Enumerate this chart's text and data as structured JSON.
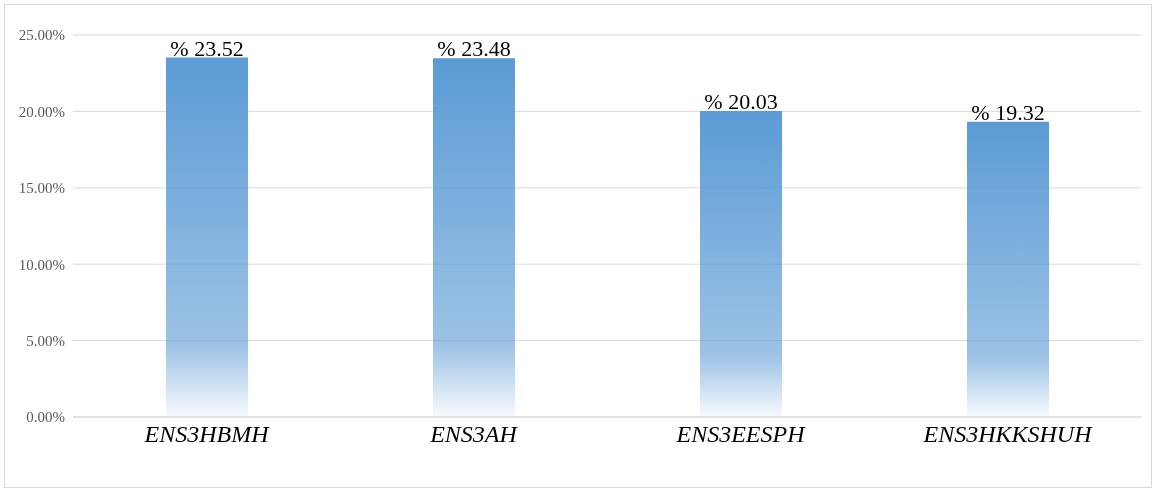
{
  "chart_data": {
    "type": "bar",
    "categories": [
      "ENS3HBMH",
      "ENS3AH",
      "ENS3EESPH",
      "ENS3HKKSHUH"
    ],
    "values": [
      23.52,
      23.48,
      20.03,
      19.32
    ],
    "value_labels": [
      "% 23.52",
      "% 23.48",
      "% 20.03",
      "% 19.32"
    ],
    "color": "#5b9bd5",
    "ylim": [
      0,
      25
    ],
    "yticks": [
      {
        "value": 0,
        "label": "0.00%"
      },
      {
        "value": 5,
        "label": "5.00%"
      },
      {
        "value": 10,
        "label": "10.00%"
      },
      {
        "value": 15,
        "label": "15.00%"
      },
      {
        "value": 20,
        "label": "20.00%"
      },
      {
        "value": 25,
        "label": "25.00%"
      }
    ],
    "grid": "y"
  }
}
